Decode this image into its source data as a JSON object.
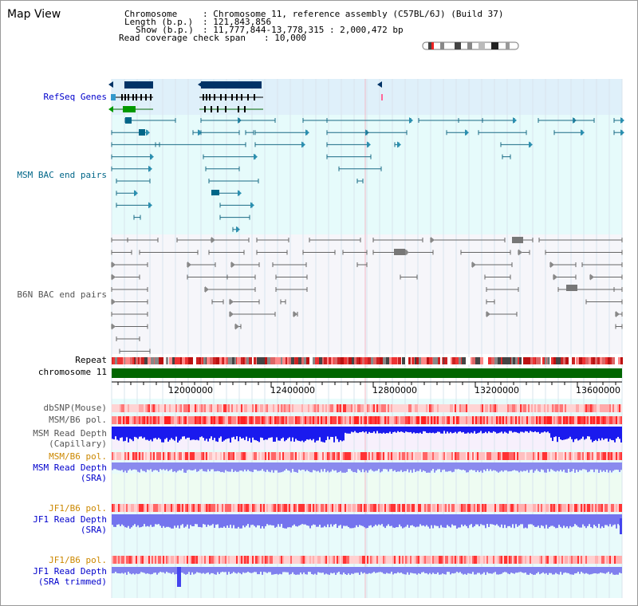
{
  "window": {
    "title": "Map View"
  },
  "header": {
    "chromosome_key": "Chromosome",
    "chromosome_value": ": Chromosome 11, reference assembly (C57BL/6J) (Build 37)",
    "length_key": "Length (b.p.)",
    "length_value": ": 121,843,856",
    "show_key": "Show (b.p.)",
    "show_value": ": 11,777,844-13,778,315 : 2,000,472 bp",
    "coverage_key": "Read coverage check span",
    "coverage_value": ": 10,000"
  },
  "tracks": {
    "refseq": "RefSeq Genes",
    "msm_bac": "MSM BAC end pairs",
    "b6n_bac": "B6N BAC end pairs",
    "repeat": "Repeat",
    "chromosome": "chromosome 11",
    "dbsnp": "dbSNP(Mouse)",
    "msm_b6_pol_1": "MSM/B6 pol.",
    "msm_depth_cap_1": "MSM Read Depth",
    "msm_depth_cap_2": "(Capillary)",
    "msm_b6_pol_2": "MSM/B6 pol.",
    "msm_depth_sra_1": "MSM Read Depth",
    "msm_depth_sra_2": "(SRA)",
    "jf1_b6_pol_1": "JF1/B6 pol.",
    "jf1_depth_sra_1": "JF1 Read Depth",
    "jf1_depth_sra_2": "(SRA)",
    "jf1_b6_pol_2": "JF1/B6 pol.",
    "jf1_depth_trim_1": "JF1 Read Depth",
    "jf1_depth_trim_2": "(SRA trimmed)"
  },
  "axis": {
    "ticks": [
      "12000000",
      "12400000",
      "12800000",
      "13200000",
      "13600000"
    ]
  },
  "colors": {
    "refseq_bg": "#dff0fa",
    "msm_bg": "#e6fbfb",
    "b6n_bg": "#f3f3f8",
    "chrom_green": "#006600",
    "depth_blue": "#1a1aee",
    "depth_lavender": "#8080ee",
    "pol_red": "#ee4444"
  }
}
